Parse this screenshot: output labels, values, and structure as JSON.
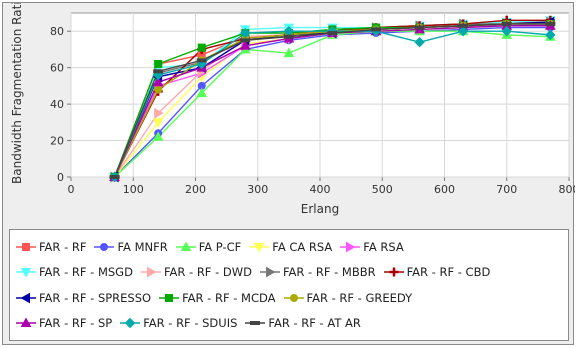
{
  "chart_data": {
    "type": "line",
    "title": "",
    "xlabel": "Erlang",
    "ylabel": "Bandwidth Fragmentation Ratio",
    "xlim": [
      0,
      800
    ],
    "ylim": [
      0,
      90
    ],
    "xticks": [
      0,
      100,
      200,
      300,
      400,
      500,
      600,
      700,
      800
    ],
    "yticks": [
      0,
      20,
      40,
      60,
      80
    ],
    "grid": true,
    "legend_position": "bottom",
    "x": [
      70,
      140,
      210,
      280,
      350,
      420,
      490,
      560,
      630,
      700,
      770
    ],
    "series": [
      {
        "name": "FAR - RF",
        "color": "#ff5555",
        "marker": "square",
        "values": [
          0,
          62,
          67,
          77,
          78,
          81,
          82,
          83,
          84,
          85,
          85
        ]
      },
      {
        "name": "FA MNFR",
        "color": "#5555ff",
        "marker": "circle",
        "values": [
          0,
          24,
          50,
          70,
          75,
          78,
          79,
          80,
          81,
          82,
          82
        ]
      },
      {
        "name": "FA P-CF",
        "color": "#55ff55",
        "marker": "triangle-up",
        "values": [
          0,
          22,
          46,
          70,
          68,
          78,
          80,
          80,
          80,
          78,
          77
        ]
      },
      {
        "name": "FA CA RSA",
        "color": "#ffff55",
        "marker": "triangle-down",
        "values": [
          0,
          30,
          55,
          73,
          76,
          79,
          80,
          81,
          82,
          83,
          83
        ]
      },
      {
        "name": "FA RSA",
        "color": "#ff55ff",
        "marker": "triangle-right",
        "values": [
          0,
          50,
          57,
          72,
          76,
          79,
          81,
          82,
          83,
          83,
          84
        ]
      },
      {
        "name": "FAR - RF - MSGD",
        "color": "#55ffff",
        "marker": "triangle-down",
        "values": [
          0,
          60,
          62,
          81,
          82,
          82,
          82,
          83,
          84,
          85,
          86
        ]
      },
      {
        "name": "FAR - RF - DWD",
        "color": "#ffaaaa",
        "marker": "triangle-right",
        "values": [
          0,
          35,
          58,
          77,
          78,
          80,
          81,
          82,
          83,
          84,
          84
        ]
      },
      {
        "name": "FAR - RF - MBBR",
        "color": "#777777",
        "marker": "triangle-right",
        "values": [
          0,
          57,
          63,
          76,
          78,
          80,
          82,
          83,
          84,
          84,
          85
        ]
      },
      {
        "name": "FAR - RF - CBD",
        "color": "#aa0000",
        "marker": "plus",
        "values": [
          0,
          47,
          70,
          76,
          78,
          80,
          82,
          83,
          84,
          86,
          86
        ]
      },
      {
        "name": "FAR - RF - SPRESSO",
        "color": "#0000aa",
        "marker": "triangle-left",
        "values": [
          0,
          55,
          60,
          75,
          78,
          79,
          81,
          82,
          83,
          84,
          85
        ]
      },
      {
        "name": "FAR - RF - MCDA",
        "color": "#00aa00",
        "marker": "square",
        "values": [
          0,
          62,
          71,
          79,
          79,
          81,
          82,
          82,
          83,
          84,
          84
        ]
      },
      {
        "name": "FAR - RF - GREEDY",
        "color": "#aaaa00",
        "marker": "circle",
        "values": [
          0,
          48,
          64,
          76,
          78,
          80,
          81,
          82,
          83,
          84,
          84
        ]
      },
      {
        "name": "FAR - RF - SP",
        "color": "#aa00aa",
        "marker": "triangle-up",
        "values": [
          0,
          52,
          60,
          72,
          76,
          79,
          80,
          81,
          82,
          83,
          83
        ]
      },
      {
        "name": "FAR - RF - SDUIS",
        "color": "#00aaaa",
        "marker": "diamond",
        "values": [
          0,
          56,
          62,
          79,
          80,
          80,
          80,
          74,
          80,
          80,
          78
        ]
      },
      {
        "name": "FAR - RF - AT AR",
        "color": "#444444",
        "marker": "minus",
        "values": [
          0,
          58,
          64,
          75,
          77,
          79,
          81,
          82,
          83,
          84,
          84
        ]
      }
    ],
    "legend_rows": [
      [
        0,
        1,
        2,
        3,
        4
      ],
      [
        5,
        6,
        7,
        8
      ],
      [
        9,
        10,
        11
      ],
      [
        12,
        13,
        14
      ]
    ]
  }
}
